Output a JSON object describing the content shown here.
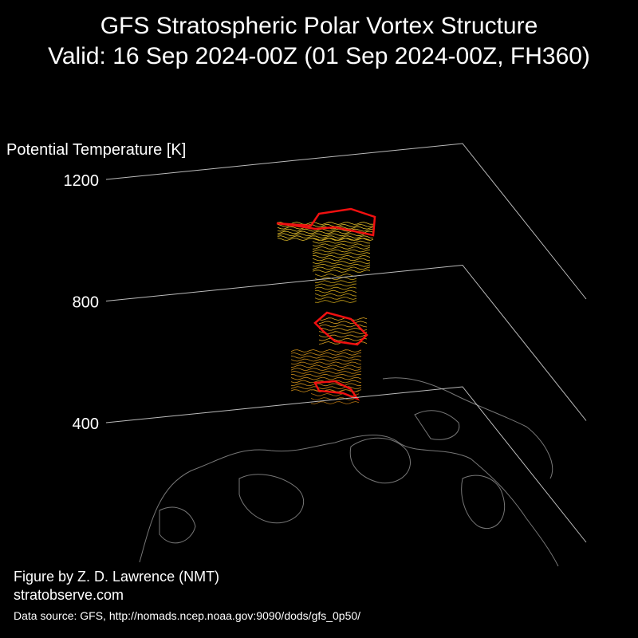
{
  "chart_data": {
    "type": "3d-isosurface",
    "title": "GFS Stratospheric Polar Vortex Structure",
    "subtitle": "Valid: 16 Sep 2024-00Z  (01 Sep 2024-00Z, FH360)",
    "zlabel": "Potential Temperature [K]",
    "zlim": [
      400,
      1200
    ],
    "zticks": [
      400,
      800,
      1200
    ]
  },
  "credits": {
    "author": "Figure by Z. D. Lawrence (NMT)",
    "website": "stratobserve.com",
    "source": "Data source: GFS, http://nomads.ncep.noaa.gov:9090/dods/gfs_0p50/"
  }
}
